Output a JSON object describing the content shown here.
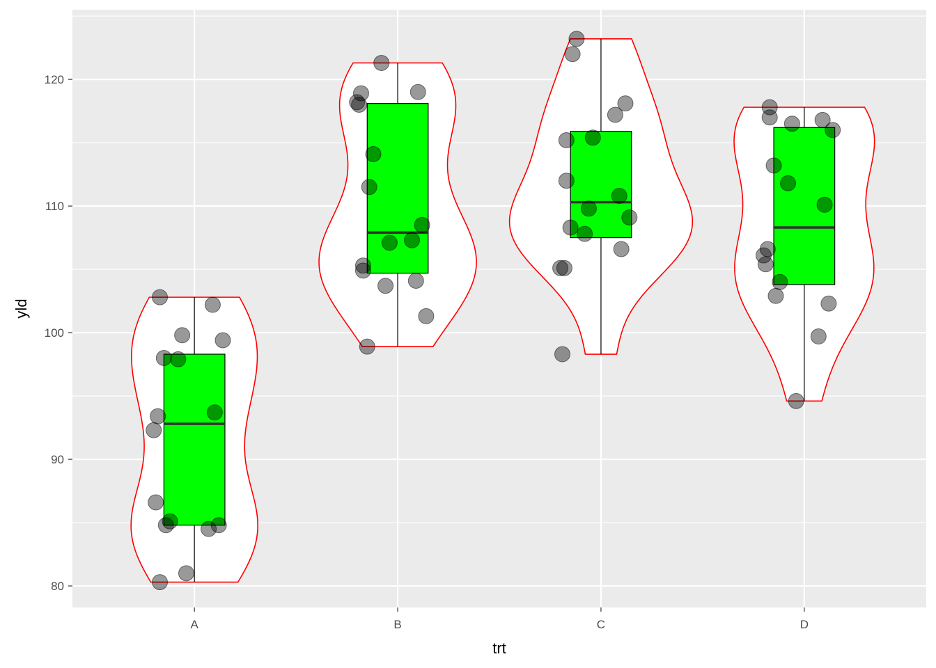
{
  "chart_data": {
    "type": "violin-box-jitter",
    "title": "",
    "xlabel": "trt",
    "ylabel": "yld",
    "categories": [
      "A",
      "B",
      "C",
      "D"
    ],
    "ylim": [
      78.3,
      125.5
    ],
    "yticks": [
      80,
      90,
      100,
      110,
      120
    ],
    "grid": true,
    "colors": {
      "panel": "#ebebeb",
      "grid": "#ffffff",
      "violin_outline": "#ff0000",
      "violin_fill": "#ffffff",
      "box_fill": "#00ff00",
      "box_outline": "#000000",
      "median": "#333333",
      "points": "#000000"
    },
    "boxes": [
      {
        "category": "A",
        "min": 80.3,
        "q1": 84.8,
        "median": 92.8,
        "q3": 98.3,
        "max": 102.8
      },
      {
        "category": "B",
        "min": 98.9,
        "q1": 104.7,
        "median": 107.9,
        "q3": 118.1,
        "max": 121.3
      },
      {
        "category": "C",
        "min": 98.3,
        "q1": 107.5,
        "median": 110.3,
        "q3": 115.9,
        "max": 123.2
      },
      {
        "category": "D",
        "min": 94.6,
        "q1": 103.8,
        "median": 108.3,
        "q3": 116.2,
        "max": 117.8
      }
    ],
    "points": [
      {
        "category": "A",
        "values": [
          102.8,
          102.2,
          99.8,
          99.4,
          98.0,
          97.9,
          93.7,
          93.4,
          92.3,
          86.6,
          85.1,
          84.8,
          84.8,
          84.5,
          81.0,
          80.3
        ]
      },
      {
        "category": "B",
        "values": [
          121.3,
          119.0,
          118.9,
          118.2,
          118.0,
          114.1,
          111.5,
          108.5,
          107.3,
          107.1,
          105.3,
          104.9,
          104.1,
          103.7,
          101.3,
          98.9
        ]
      },
      {
        "category": "C",
        "values": [
          123.2,
          122.0,
          118.1,
          117.2,
          115.4,
          115.2,
          112.0,
          110.8,
          109.8,
          109.1,
          108.3,
          107.8,
          106.6,
          105.1,
          105.1,
          98.3
        ]
      },
      {
        "category": "D",
        "values": [
          117.8,
          117.0,
          116.8,
          116.5,
          116.0,
          113.2,
          111.8,
          110.1,
          106.6,
          106.1,
          105.4,
          104.0,
          102.9,
          102.3,
          99.7,
          94.6
        ]
      }
    ]
  }
}
